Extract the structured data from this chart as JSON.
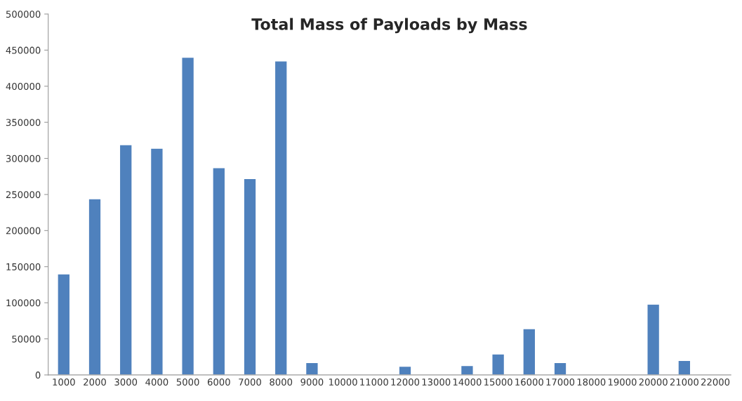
{
  "chart_data": {
    "type": "bar",
    "title": "Total Mass of Payloads by Mass",
    "categories": [
      "1000",
      "2000",
      "3000",
      "4000",
      "5000",
      "6000",
      "7000",
      "8000",
      "9000",
      "10000",
      "11000",
      "12000",
      "13000",
      "14000",
      "15000",
      "16000",
      "17000",
      "18000",
      "19000",
      "20000",
      "21000",
      "22000"
    ],
    "values": [
      140000,
      244000,
      319000,
      314000,
      440000,
      287000,
      272000,
      435000,
      17000,
      null,
      null,
      12000,
      null,
      13000,
      29000,
      64000,
      17000,
      null,
      null,
      98000,
      20000,
      null
    ],
    "color": "#4f81bd",
    "ylim": [
      0,
      500000
    ],
    "yticks": [
      0,
      50000,
      100000,
      150000,
      200000,
      250000,
      300000,
      350000,
      400000,
      450000,
      500000
    ],
    "grid": false,
    "legend": false
  }
}
